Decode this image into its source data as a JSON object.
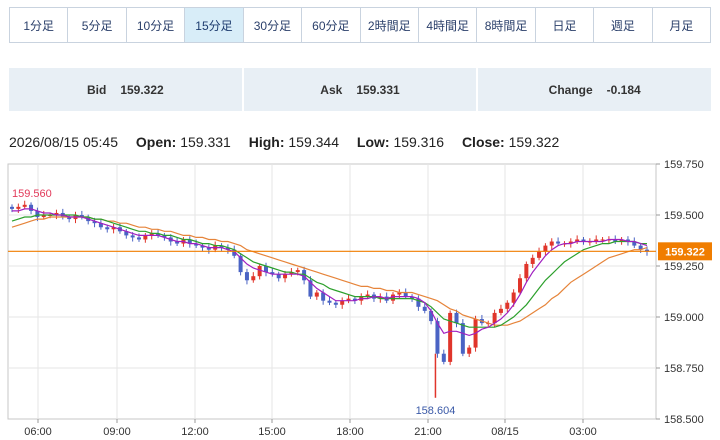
{
  "timeframes": [
    "1分足",
    "5分足",
    "10分足",
    "15分足",
    "30分足",
    "60分足",
    "2時間足",
    "4時間足",
    "8時間足",
    "日足",
    "週足",
    "月足"
  ],
  "active_timeframe": "15分足",
  "quote": {
    "bid_label": "Bid",
    "bid": "159.322",
    "ask_label": "Ask",
    "ask": "159.331",
    "change_label": "Change",
    "change": "-0.184"
  },
  "ohlc": {
    "datetime": "2026/08/15 05:45",
    "open_label": "Open:",
    "open": "159.331",
    "high_label": "High:",
    "high": "159.344",
    "low_label": "Low:",
    "low": "159.316",
    "close_label": "Close:",
    "close": "159.322"
  },
  "colors": {
    "up": "#e0352b",
    "down": "#4a63c4",
    "ma_short": "#a020c0",
    "ma_mid": "#2ca02c",
    "ma_long": "#e6843a",
    "current_line": "#f07d00"
  },
  "chart_data": {
    "type": "candlestick",
    "ylim": [
      158.5,
      159.75
    ],
    "y_ticks": [
      "159.750",
      "159.500",
      "159.250",
      "159.000",
      "158.750",
      "158.500"
    ],
    "x_ticks": [
      "06:00",
      "09:00",
      "12:00",
      "15:00",
      "18:00",
      "21:00",
      "08/15",
      "03:00"
    ],
    "current_price": "159.322",
    "high_annotation": "159.560",
    "low_annotation": "158.604",
    "close": [
      159.53,
      159.54,
      159.55,
      159.52,
      159.49,
      159.5,
      159.5,
      159.51,
      159.49,
      159.48,
      159.5,
      159.49,
      159.47,
      159.46,
      159.44,
      159.43,
      159.44,
      159.42,
      159.4,
      159.39,
      159.38,
      159.4,
      159.41,
      159.4,
      159.39,
      159.37,
      159.36,
      159.38,
      159.36,
      159.35,
      159.34,
      159.33,
      159.35,
      159.34,
      159.33,
      159.3,
      159.22,
      159.18,
      159.2,
      159.25,
      159.22,
      159.21,
      159.19,
      159.21,
      159.22,
      159.23,
      159.18,
      159.1,
      159.12,
      159.08,
      159.07,
      159.06,
      159.08,
      159.09,
      159.08,
      159.1,
      159.11,
      159.09,
      159.1,
      159.08,
      159.11,
      159.12,
      159.1,
      159.09,
      159.05,
      159.03,
      158.98,
      158.82,
      158.78,
      159.02,
      158.97,
      158.82,
      158.85,
      158.99,
      158.97,
      158.97,
      159.02,
      159.04,
      159.07,
      159.12,
      159.19,
      159.26,
      159.29,
      159.32,
      159.35,
      159.37,
      159.36,
      159.36,
      159.37,
      159.38,
      159.37,
      159.37,
      159.38,
      159.38,
      159.38,
      159.37,
      159.38,
      159.37,
      159.35,
      159.33,
      159.32
    ],
    "ma_short": [
      159.52,
      159.52,
      159.53,
      159.53,
      159.52,
      159.51,
      159.51,
      159.5,
      159.5,
      159.49,
      159.49,
      159.49,
      159.48,
      159.47,
      159.46,
      159.45,
      159.44,
      159.43,
      159.42,
      159.41,
      159.4,
      159.4,
      159.4,
      159.4,
      159.39,
      159.38,
      159.37,
      159.37,
      159.36,
      159.36,
      159.35,
      159.34,
      159.34,
      159.34,
      159.33,
      159.32,
      159.29,
      159.26,
      159.24,
      159.23,
      159.22,
      159.21,
      159.21,
      159.21,
      159.21,
      159.21,
      159.2,
      159.17,
      159.14,
      159.12,
      159.1,
      159.08,
      159.08,
      159.08,
      159.08,
      159.09,
      159.09,
      159.1,
      159.1,
      159.09,
      159.1,
      159.1,
      159.1,
      159.1,
      159.09,
      159.07,
      159.03,
      158.97,
      158.92,
      158.93,
      158.93,
      158.92,
      158.91,
      158.92,
      158.94,
      158.95,
      158.97,
      158.99,
      159.02,
      159.06,
      159.11,
      159.17,
      159.22,
      159.26,
      159.3,
      159.33,
      159.35,
      159.36,
      159.36,
      159.37,
      159.37,
      159.37,
      159.37,
      159.37,
      159.38,
      159.38,
      159.38,
      159.37,
      159.37,
      159.36,
      159.35
    ],
    "ma_mid": [
      159.47,
      159.48,
      159.49,
      159.49,
      159.5,
      159.5,
      159.5,
      159.5,
      159.5,
      159.5,
      159.5,
      159.49,
      159.49,
      159.48,
      159.48,
      159.47,
      159.46,
      159.45,
      159.44,
      159.43,
      159.42,
      159.42,
      159.41,
      159.41,
      159.4,
      159.4,
      159.39,
      159.38,
      159.38,
      159.37,
      159.36,
      159.36,
      159.35,
      159.35,
      159.34,
      159.33,
      159.31,
      159.29,
      159.27,
      159.26,
      159.25,
      159.24,
      159.23,
      159.22,
      159.22,
      159.21,
      159.21,
      159.19,
      159.17,
      159.16,
      159.14,
      159.13,
      159.12,
      159.11,
      159.1,
      159.1,
      159.1,
      159.1,
      159.09,
      159.09,
      159.09,
      159.09,
      159.09,
      159.09,
      159.08,
      159.07,
      159.05,
      159.02,
      158.99,
      158.98,
      158.97,
      158.96,
      158.95,
      158.95,
      158.95,
      158.95,
      158.95,
      158.96,
      158.98,
      159.0,
      159.03,
      159.06,
      159.1,
      159.14,
      159.18,
      159.21,
      159.24,
      159.27,
      159.29,
      159.31,
      159.33,
      159.34,
      159.35,
      159.36,
      159.36,
      159.37,
      159.37,
      159.37,
      159.37,
      159.36,
      159.36
    ],
    "ma_long": [
      159.44,
      159.45,
      159.46,
      159.47,
      159.48,
      159.48,
      159.49,
      159.49,
      159.49,
      159.49,
      159.49,
      159.49,
      159.49,
      159.48,
      159.48,
      159.47,
      159.47,
      159.46,
      159.46,
      159.45,
      159.44,
      159.44,
      159.43,
      159.43,
      159.42,
      159.42,
      159.41,
      159.4,
      159.4,
      159.39,
      159.39,
      159.38,
      159.38,
      159.37,
      159.37,
      159.36,
      159.35,
      159.33,
      159.32,
      159.31,
      159.3,
      159.29,
      159.28,
      159.27,
      159.26,
      159.25,
      159.24,
      159.23,
      159.22,
      159.21,
      159.2,
      159.19,
      159.18,
      159.17,
      159.16,
      159.15,
      159.15,
      159.14,
      159.14,
      159.13,
      159.13,
      159.12,
      159.12,
      159.12,
      159.11,
      159.1,
      159.09,
      159.08,
      159.06,
      159.04,
      159.03,
      159.01,
      159.0,
      158.99,
      158.98,
      158.97,
      158.96,
      158.96,
      158.96,
      158.97,
      158.98,
      159.0,
      159.02,
      159.04,
      159.06,
      159.09,
      159.11,
      159.14,
      159.17,
      159.19,
      159.21,
      159.23,
      159.25,
      159.27,
      159.29,
      159.3,
      159.31,
      159.32,
      159.33,
      159.33,
      159.34
    ]
  }
}
